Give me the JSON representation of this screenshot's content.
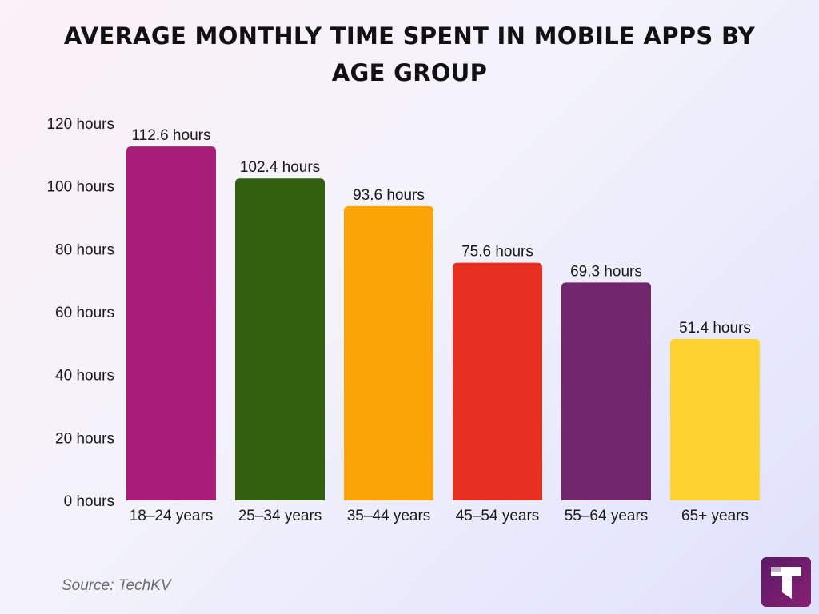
{
  "header": {
    "title_line1": "AVERAGE MONTHLY TIME SPENT IN MOBILE APPS BY",
    "title_line2": "AGE GROUP"
  },
  "footer": {
    "source": "Source: TechKV",
    "logo_icon": "techkv-logo-icon"
  },
  "chart_data": {
    "type": "bar",
    "title": "AVERAGE MONTHLY TIME SPENT IN MOBILE APPS BY AGE GROUP",
    "xlabel": "",
    "ylabel": "",
    "categories": [
      "18–24 years",
      "25–34 years",
      "35–44 years",
      "45–54 years",
      "55–64 years",
      "65+ years"
    ],
    "values": [
      112.6,
      102.4,
      93.6,
      75.6,
      69.3,
      51.4
    ],
    "data_labels": [
      "112.6 hours",
      "102.4 hours",
      "93.6 hours",
      "75.6 hours",
      "69.3 hours",
      "51.4 hours"
    ],
    "colors": [
      "#a91c78",
      "#33600f",
      "#fba408",
      "#e72f22",
      "#72276d",
      "#fed330"
    ],
    "ylim": [
      0,
      120
    ],
    "yticks": [
      0,
      20,
      40,
      60,
      80,
      100,
      120
    ],
    "ytick_labels": [
      "0 hours",
      "20 hours",
      "40 hours",
      "60 hours",
      "80 hours",
      "100 hours",
      "120 hours"
    ],
    "grid": false,
    "legend": "none"
  }
}
